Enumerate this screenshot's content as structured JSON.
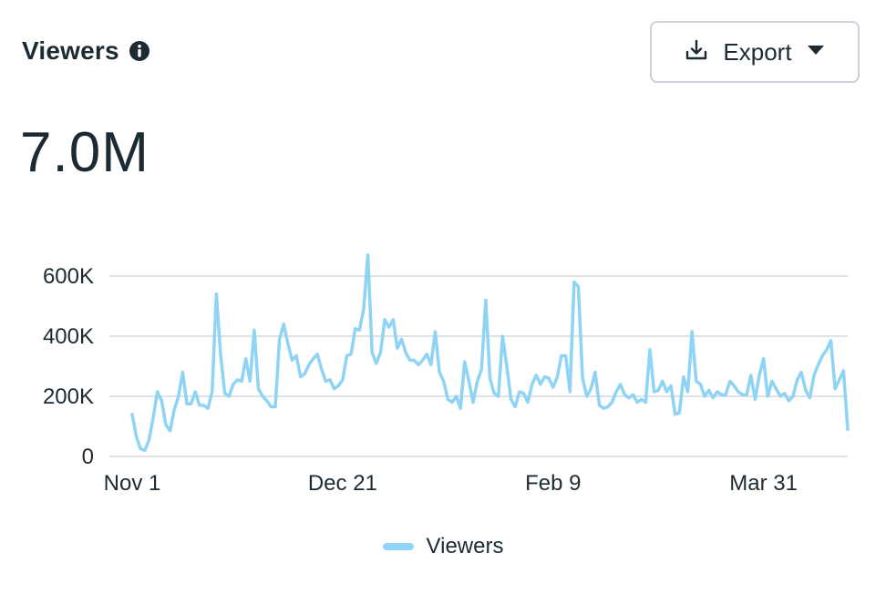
{
  "header": {
    "title": "Viewers",
    "info_icon": "info-icon"
  },
  "export_button": {
    "label": "Export",
    "icon": "download-icon",
    "dropdown_icon": "caret-down-icon"
  },
  "total": "7.0M",
  "colors": {
    "line": "#8fd3f5",
    "grid": "#dde2e6",
    "text": "#1c2b33"
  },
  "chart_data": {
    "type": "line",
    "title": "",
    "xlabel": "",
    "ylabel": "",
    "ylim": [
      0,
      600000
    ],
    "y_ticks": [
      {
        "value": 0,
        "label": "0"
      },
      {
        "value": 200000,
        "label": "200K"
      },
      {
        "value": 400000,
        "label": "400K"
      },
      {
        "value": 600000,
        "label": "600K"
      }
    ],
    "x_ticks": [
      {
        "value": "2022-11-01",
        "label": "Nov 1"
      },
      {
        "value": "2022-12-21",
        "label": "Dec 21"
      },
      {
        "value": "2023-02-09",
        "label": "Feb 9"
      },
      {
        "value": "2023-03-31",
        "label": "Mar 31"
      }
    ],
    "grid": true,
    "legend": "bottom-center",
    "series": [
      {
        "name": "Viewers",
        "x": [
          "2022-11-01",
          "2022-11-02",
          "2022-11-03",
          "2022-11-04",
          "2022-11-05",
          "2022-11-06",
          "2022-11-07",
          "2022-11-08",
          "2022-11-09",
          "2022-11-10",
          "2022-11-11",
          "2022-11-12",
          "2022-11-13",
          "2022-11-14",
          "2022-11-15",
          "2022-11-16",
          "2022-11-17",
          "2022-11-18",
          "2022-11-19",
          "2022-11-20",
          "2022-11-21",
          "2022-11-22",
          "2022-11-23",
          "2022-11-24",
          "2022-11-25",
          "2022-11-26",
          "2022-11-27",
          "2022-11-28",
          "2022-11-29",
          "2022-11-30",
          "2022-12-01",
          "2022-12-02",
          "2022-12-03",
          "2022-12-04",
          "2022-12-05",
          "2022-12-06",
          "2022-12-07",
          "2022-12-08",
          "2022-12-09",
          "2022-12-10",
          "2022-12-11",
          "2022-12-12",
          "2022-12-13",
          "2022-12-14",
          "2022-12-15",
          "2022-12-16",
          "2022-12-17",
          "2022-12-18",
          "2022-12-19",
          "2022-12-20",
          "2022-12-21",
          "2022-12-22",
          "2022-12-23",
          "2022-12-24",
          "2022-12-25",
          "2022-12-26",
          "2022-12-27",
          "2022-12-28",
          "2022-12-29",
          "2022-12-30",
          "2022-12-31",
          "2023-01-01",
          "2023-01-02",
          "2023-01-03",
          "2023-01-04",
          "2023-01-05",
          "2023-01-06",
          "2023-01-07",
          "2023-01-08",
          "2023-01-09",
          "2023-01-10",
          "2023-01-11",
          "2023-01-12",
          "2023-01-13",
          "2023-01-14",
          "2023-01-15",
          "2023-01-16",
          "2023-01-17",
          "2023-01-18",
          "2023-01-19",
          "2023-01-20",
          "2023-01-21",
          "2023-01-22",
          "2023-01-23",
          "2023-01-24",
          "2023-01-25",
          "2023-01-26",
          "2023-01-27",
          "2023-01-28",
          "2023-01-29",
          "2023-01-30",
          "2023-01-31",
          "2023-02-01",
          "2023-02-02",
          "2023-02-03",
          "2023-02-04",
          "2023-02-05",
          "2023-02-06",
          "2023-02-07",
          "2023-02-08",
          "2023-02-09",
          "2023-02-10",
          "2023-02-11",
          "2023-02-12",
          "2023-02-13",
          "2023-02-14",
          "2023-02-15",
          "2023-02-16",
          "2023-02-17",
          "2023-02-18",
          "2023-02-19",
          "2023-02-20",
          "2023-02-21",
          "2023-02-22",
          "2023-02-23",
          "2023-02-24",
          "2023-02-25",
          "2023-02-26",
          "2023-02-27",
          "2023-02-28",
          "2023-03-01",
          "2023-03-02",
          "2023-03-03",
          "2023-03-04",
          "2023-03-05",
          "2023-03-06",
          "2023-03-07",
          "2023-03-08",
          "2023-03-09",
          "2023-03-10",
          "2023-03-11",
          "2023-03-12",
          "2023-03-13",
          "2023-03-14",
          "2023-03-15",
          "2023-03-16",
          "2023-03-17",
          "2023-03-18",
          "2023-03-19",
          "2023-03-20",
          "2023-03-21",
          "2023-03-22",
          "2023-03-23",
          "2023-03-24",
          "2023-03-25",
          "2023-03-26",
          "2023-03-27",
          "2023-03-28",
          "2023-03-29",
          "2023-03-30",
          "2023-03-31",
          "2023-04-01",
          "2023-04-02",
          "2023-04-03",
          "2023-04-04",
          "2023-04-05",
          "2023-04-06",
          "2023-04-07",
          "2023-04-08",
          "2023-04-09",
          "2023-04-10",
          "2023-04-11",
          "2023-04-12",
          "2023-04-13",
          "2023-04-14",
          "2023-04-15",
          "2023-04-16",
          "2023-04-17",
          "2023-04-18",
          "2023-04-19",
          "2023-04-20"
        ],
        "values": [
          140000,
          65000,
          25000,
          20000,
          55000,
          130000,
          215000,
          185000,
          105000,
          85000,
          155000,
          200000,
          280000,
          175000,
          175000,
          215000,
          170000,
          170000,
          160000,
          215000,
          540000,
          340000,
          210000,
          200000,
          240000,
          255000,
          250000,
          325000,
          250000,
          420000,
          225000,
          200000,
          185000,
          165000,
          165000,
          390000,
          440000,
          375000,
          320000,
          335000,
          265000,
          275000,
          305000,
          325000,
          340000,
          290000,
          250000,
          255000,
          225000,
          235000,
          255000,
          335000,
          340000,
          425000,
          420000,
          490000,
          670000,
          345000,
          310000,
          345000,
          455000,
          430000,
          455000,
          360000,
          390000,
          345000,
          320000,
          320000,
          305000,
          320000,
          340000,
          305000,
          415000,
          280000,
          250000,
          190000,
          180000,
          200000,
          160000,
          315000,
          250000,
          180000,
          250000,
          290000,
          520000,
          260000,
          210000,
          200000,
          400000,
          300000,
          190000,
          165000,
          215000,
          210000,
          180000,
          240000,
          270000,
          240000,
          265000,
          260000,
          230000,
          265000,
          335000,
          335000,
          215000,
          580000,
          565000,
          260000,
          200000,
          225000,
          280000,
          170000,
          160000,
          165000,
          180000,
          215000,
          240000,
          205000,
          195000,
          205000,
          180000,
          190000,
          180000,
          355000,
          215000,
          220000,
          250000,
          215000,
          235000,
          140000,
          145000,
          265000,
          215000,
          415000,
          250000,
          240000,
          200000,
          220000,
          195000,
          215000,
          205000,
          205000,
          250000,
          235000,
          215000,
          205000,
          205000,
          270000,
          190000,
          270000,
          325000,
          200000,
          250000,
          225000,
          200000,
          210000,
          185000,
          200000,
          255000,
          280000,
          220000,
          195000,
          270000,
          305000,
          335000,
          355000,
          385000,
          225000,
          255000,
          285000,
          90000
        ]
      }
    ]
  },
  "legend": {
    "label": "Viewers"
  }
}
